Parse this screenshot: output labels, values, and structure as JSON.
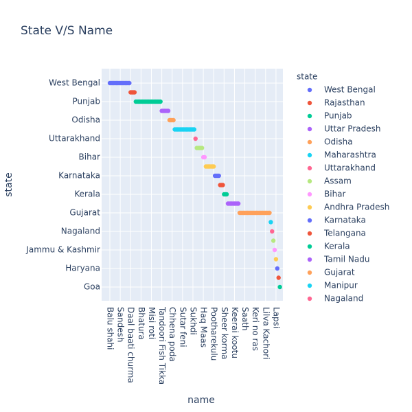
{
  "chart_data": {
    "type": "scatter",
    "title": "State V/S Name",
    "x_label": "name",
    "y_label": "state",
    "legend_title": "state",
    "grid": true,
    "legend_position": "right",
    "categories": [
      "Balu shahi",
      null,
      null,
      null,
      null,
      null,
      null,
      null,
      "Sandesh",
      null,
      null,
      null,
      null,
      null,
      null,
      null,
      "Daal baati churma",
      null,
      null,
      null,
      null,
      null,
      null,
      null,
      "Bhatura",
      null,
      null,
      null,
      null,
      null,
      null,
      null,
      "Misi roti",
      null,
      null,
      null,
      null,
      null,
      null,
      null,
      "Tandoori Fish Tikka",
      null,
      null,
      null,
      null,
      null,
      null,
      null,
      "Chhena poda",
      null,
      null,
      null,
      null,
      null,
      null,
      null,
      "Sutar feni",
      null,
      null,
      null,
      null,
      null,
      null,
      null,
      "Sukhdi",
      null,
      null,
      null,
      null,
      null,
      null,
      null,
      "Haq Maas",
      null,
      null,
      null,
      null,
      null,
      null,
      null,
      "Pootharekulu",
      null,
      null,
      null,
      null,
      null,
      null,
      null,
      "Sheer korma",
      null,
      null,
      null,
      null,
      null,
      null,
      null,
      "Keerai kootu",
      null,
      null,
      null,
      null,
      null,
      null,
      null,
      "Saath",
      null,
      null,
      null,
      null,
      null,
      null,
      null,
      "Keri no ras",
      null,
      null,
      null,
      null,
      null,
      null,
      null,
      "Lilva Kachori",
      null,
      null,
      null,
      null,
      null,
      null,
      null,
      "Lapsi",
      null,
      null,
      null
    ],
    "values": [
      0,
      0,
      0,
      0,
      0,
      0,
      0,
      0,
      0,
      0,
      0,
      0,
      0,
      0,
      0,
      0,
      1,
      1,
      1,
      1,
      2,
      2,
      2,
      2,
      2,
      2,
      2,
      2,
      2,
      2,
      2,
      2,
      2,
      2,
      2,
      2,
      2,
      2,
      2,
      2,
      3,
      3,
      3,
      3,
      3,
      3,
      4,
      4,
      4,
      4,
      5,
      5,
      5,
      5,
      5,
      5,
      5,
      5,
      5,
      5,
      5,
      5,
      5,
      5,
      5,
      5,
      6,
      7,
      7,
      7,
      7,
      7,
      8,
      8,
      9,
      9,
      9,
      9,
      9,
      9,
      9,
      10,
      10,
      10,
      10,
      11,
      11,
      11,
      12,
      12,
      12,
      13,
      13,
      13,
      13,
      13,
      13,
      13,
      13,
      13,
      14,
      14,
      14,
      14,
      14,
      14,
      14,
      14,
      14,
      14,
      14,
      14,
      14,
      14,
      14,
      14,
      14,
      14,
      14,
      14,
      14,
      14,
      14,
      14,
      15,
      16,
      17,
      18,
      19,
      20,
      21,
      22
    ],
    "series": [
      {
        "name": "West Bengal",
        "color": "#636efa"
      },
      {
        "name": "Rajasthan",
        "color": "#EF553B"
      },
      {
        "name": "Punjab",
        "color": "#00cc96"
      },
      {
        "name": "Uttar Pradesh",
        "color": "#ab63fa"
      },
      {
        "name": "Odisha",
        "color": "#FFA15A"
      },
      {
        "name": "Maharashtra",
        "color": "#19d3f3"
      },
      {
        "name": "Uttarakhand",
        "color": "#FF6692"
      },
      {
        "name": "Assam",
        "color": "#B6E880"
      },
      {
        "name": "Bihar",
        "color": "#FF97FF"
      },
      {
        "name": "Andhra Pradesh",
        "color": "#FECB52"
      },
      {
        "name": "Karnataka",
        "color": "#636efa"
      },
      {
        "name": "Telangana",
        "color": "#EF553B"
      },
      {
        "name": "Kerala",
        "color": "#00cc96"
      },
      {
        "name": "Tamil Nadu",
        "color": "#ab63fa"
      },
      {
        "name": "Gujarat",
        "color": "#FFA15A"
      },
      {
        "name": "Manipur",
        "color": "#19d3f3"
      },
      {
        "name": "Nagaland",
        "color": "#FF6692"
      },
      {
        "name": null,
        "color": "#B6E880"
      },
      {
        "name": "Jammu & Kashmir",
        "color": "#FF97FF"
      },
      {
        "name": null,
        "color": "#FECB52"
      },
      {
        "name": "Haryana",
        "color": "#636efa"
      },
      {
        "name": null,
        "color": "#EF553B"
      },
      {
        "name": "Goa",
        "color": "#00cc96"
      }
    ]
  }
}
